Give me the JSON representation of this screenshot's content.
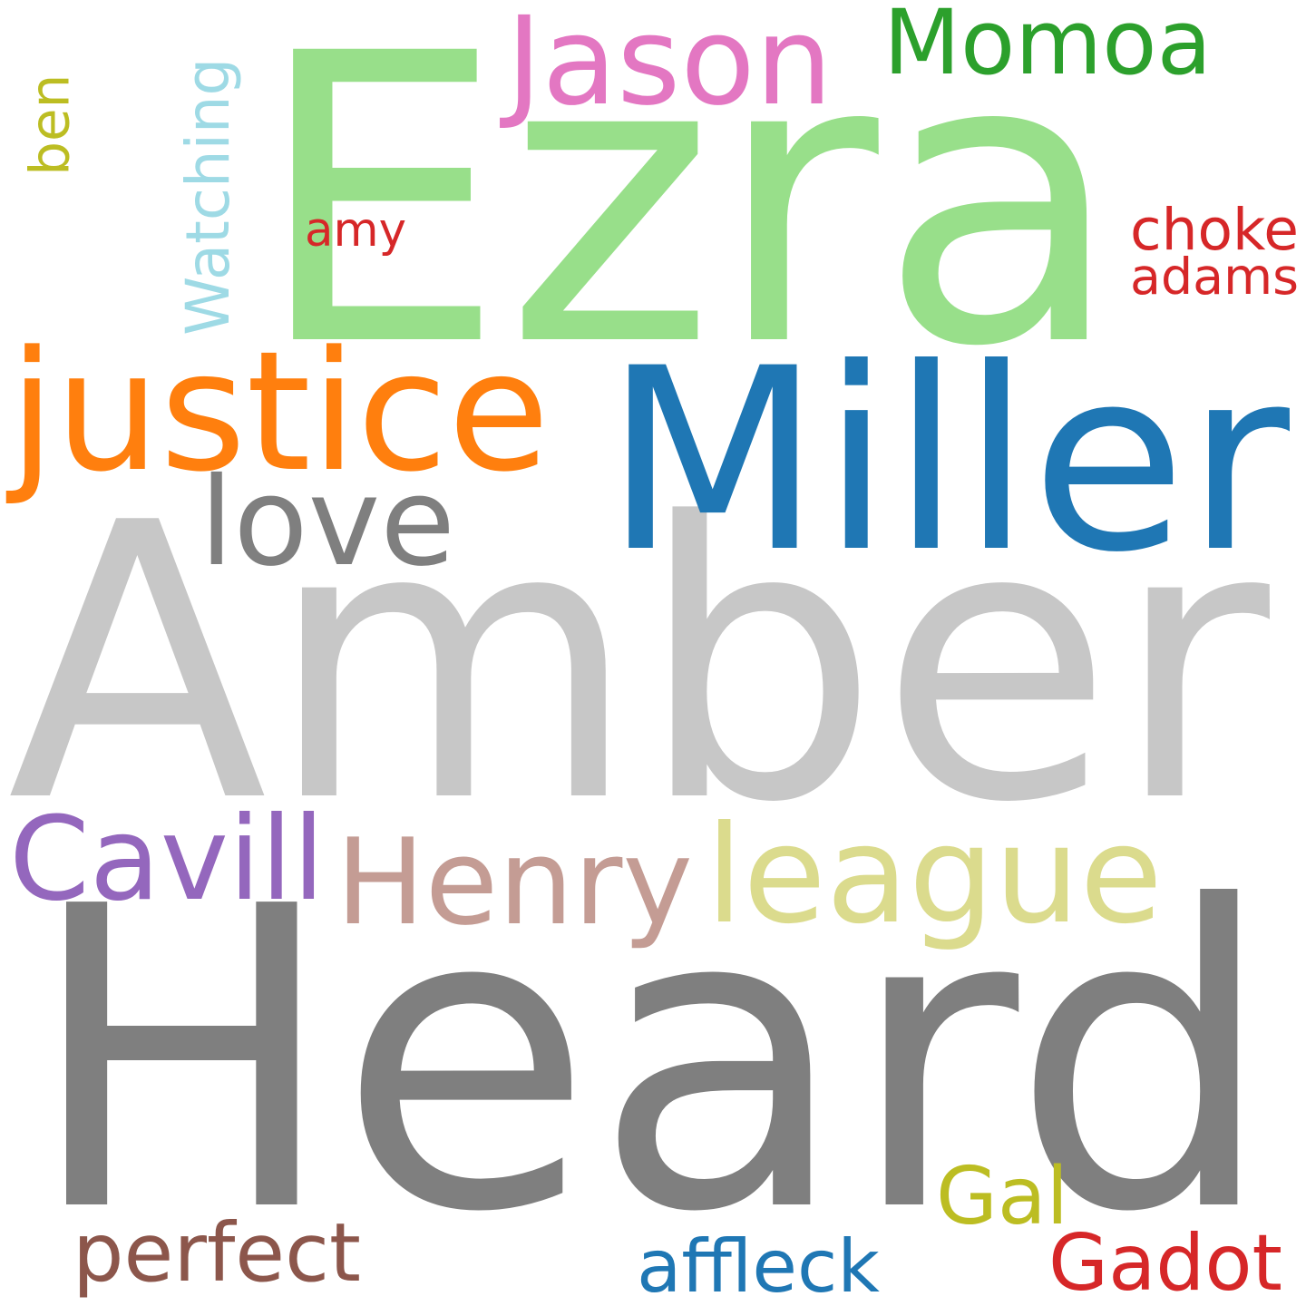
{
  "words": [
    {
      "text": "Amber",
      "color": "#c7c7c7",
      "orientation": "horizontal"
    },
    {
      "text": "Heard",
      "color": "#7f7f7f",
      "orientation": "horizontal"
    },
    {
      "text": "Ezra",
      "color": "#98df8a",
      "orientation": "horizontal"
    },
    {
      "text": "Miller",
      "color": "#1f77b4",
      "orientation": "horizontal"
    },
    {
      "text": "justice",
      "color": "#ff7f0e",
      "orientation": "horizontal"
    },
    {
      "text": "league",
      "color": "#dbdb8d",
      "orientation": "horizontal"
    },
    {
      "text": "Henry",
      "color": "#c49c94",
      "orientation": "horizontal"
    },
    {
      "text": "Jason",
      "color": "#e377c2",
      "orientation": "horizontal"
    },
    {
      "text": "Momoa",
      "color": "#2ca02c",
      "orientation": "horizontal"
    },
    {
      "text": "love",
      "color": "#7f7f7f",
      "orientation": "horizontal"
    },
    {
      "text": "Cavill",
      "color": "#9467bd",
      "orientation": "horizontal"
    },
    {
      "text": "Gadot",
      "color": "#d62728",
      "orientation": "horizontal"
    },
    {
      "text": "perfect",
      "color": "#8c564b",
      "orientation": "horizontal"
    },
    {
      "text": "Gal",
      "color": "#bcbd22",
      "orientation": "horizontal"
    },
    {
      "text": "Watching",
      "color": "#9edae5",
      "orientation": "vertical"
    },
    {
      "text": "affleck",
      "color": "#1f77b4",
      "orientation": "horizontal"
    },
    {
      "text": "choke",
      "color": "#d62728",
      "orientation": "horizontal"
    },
    {
      "text": "adams",
      "color": "#d62728",
      "orientation": "horizontal"
    },
    {
      "text": "amy",
      "color": "#d62728",
      "orientation": "horizontal"
    },
    {
      "text": "ben",
      "color": "#bcbd22",
      "orientation": "vertical"
    }
  ]
}
